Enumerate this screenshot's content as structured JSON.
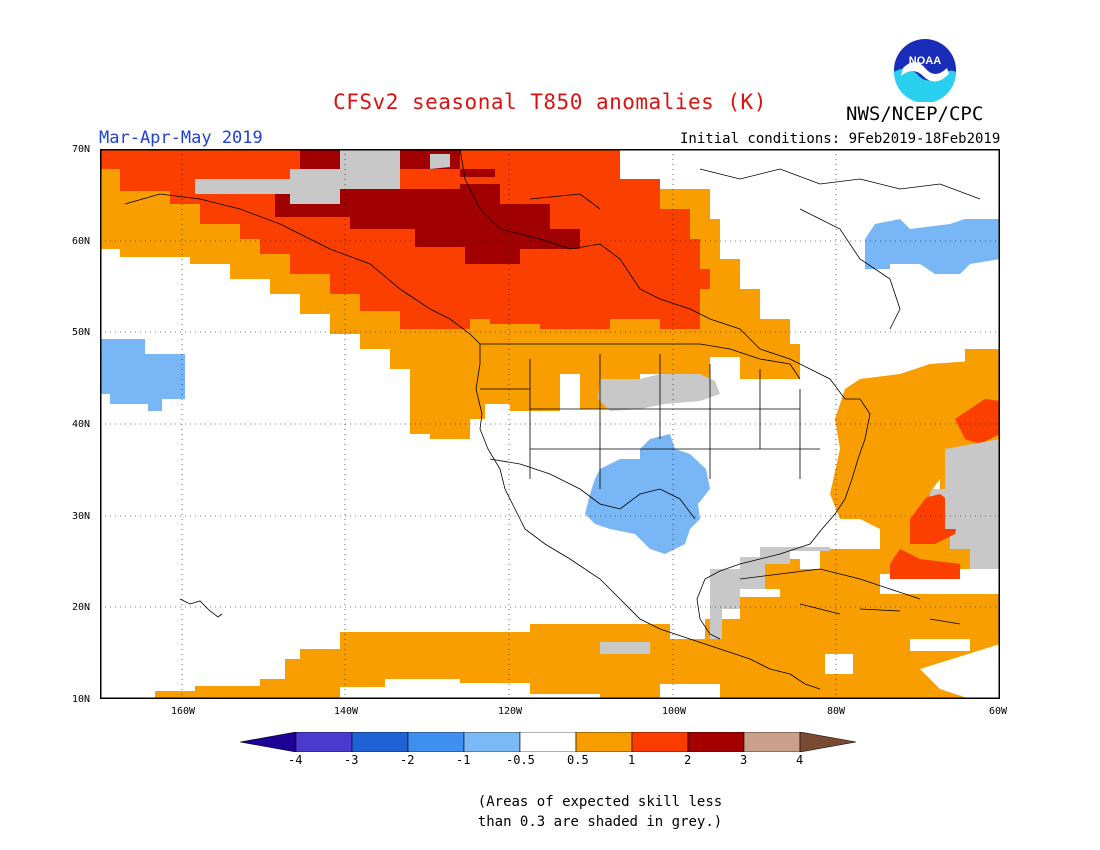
{
  "header": {
    "title": "CFSv2 seasonal T850 anomalies (K)",
    "agency": "NWS/NCEP/CPC",
    "logo_text": "NOAA",
    "period": "Mar-Apr-May 2019",
    "initial_conditions": "Initial conditions: 9Feb2019-18Feb2019"
  },
  "map": {
    "projection": "lat-lon",
    "lon_range": [
      -170,
      -60
    ],
    "lat_range": [
      10,
      70
    ],
    "lat_ticks": [
      "70N",
      "60N",
      "50N",
      "40N",
      "30N",
      "20N",
      "10N"
    ],
    "lon_ticks": [
      "160W",
      "140W",
      "120W",
      "100W",
      "80W",
      "60W"
    ],
    "gridlines": true,
    "field": "850 hPa temperature anomaly"
  },
  "colorbar": {
    "labels": [
      "-4",
      "-3",
      "-2",
      "-1",
      "-0.5",
      "0.5",
      "1",
      "2",
      "3",
      "4"
    ],
    "colors": [
      "#1e0096",
      "#4a3ad0",
      "#1f62d6",
      "#3f8ff0",
      "#7ab8f6",
      "#ffffff",
      "#f79d00",
      "#fa3c00",
      "#a50000",
      "#c8a08c",
      "#7a4a32"
    ]
  },
  "legend_note": {
    "line1": "(Areas of expected skill less",
    "line2": "than 0.3 are shaded in grey.)"
  },
  "colors": {
    "orange": "#f89e00",
    "red": "#fb3f00",
    "dark_red": "#a00000",
    "light_blue": "#78b6f5",
    "grey": "#c8c8c8"
  }
}
